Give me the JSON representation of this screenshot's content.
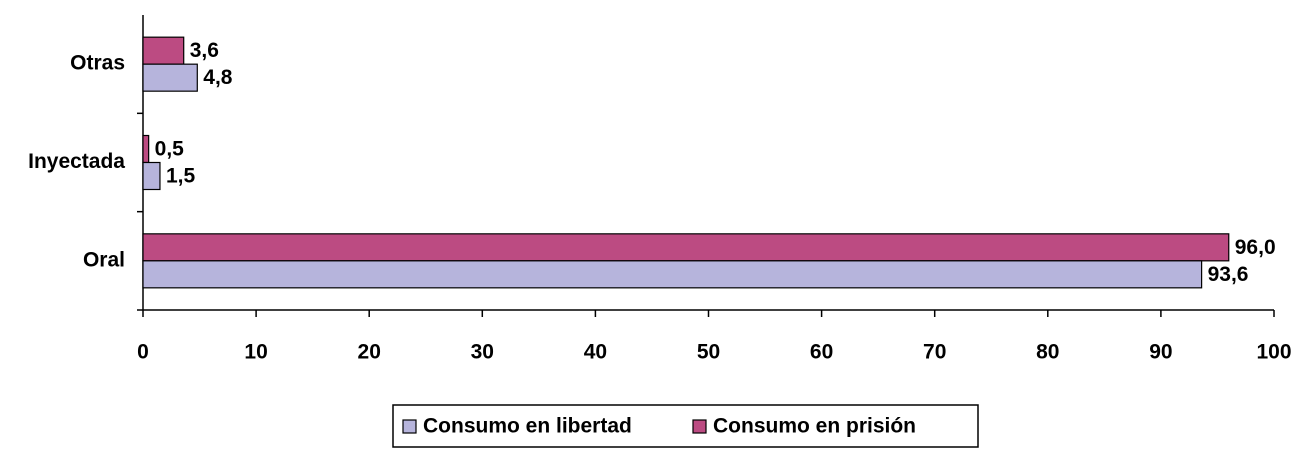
{
  "chart_data": {
    "type": "hbar",
    "categories": [
      "Oral",
      "Inyectada",
      "Otras"
    ],
    "series": [
      {
        "name": "Consumo en libertad",
        "color": "#b6b4dc",
        "values": [
          93.6,
          1.5,
          4.8
        ],
        "value_labels": [
          "93,6",
          "1,5",
          "4,8"
        ]
      },
      {
        "name": "Consumo en prisión",
        "color": "#bc4b82",
        "values": [
          96.0,
          0.5,
          3.6
        ],
        "value_labels": [
          "96,0",
          "0,5",
          "3,6"
        ]
      }
    ],
    "xlim": [
      0,
      100
    ],
    "xticks": [
      0,
      10,
      20,
      30,
      40,
      50,
      60,
      70,
      80,
      90,
      100
    ],
    "legend": "bottom"
  }
}
